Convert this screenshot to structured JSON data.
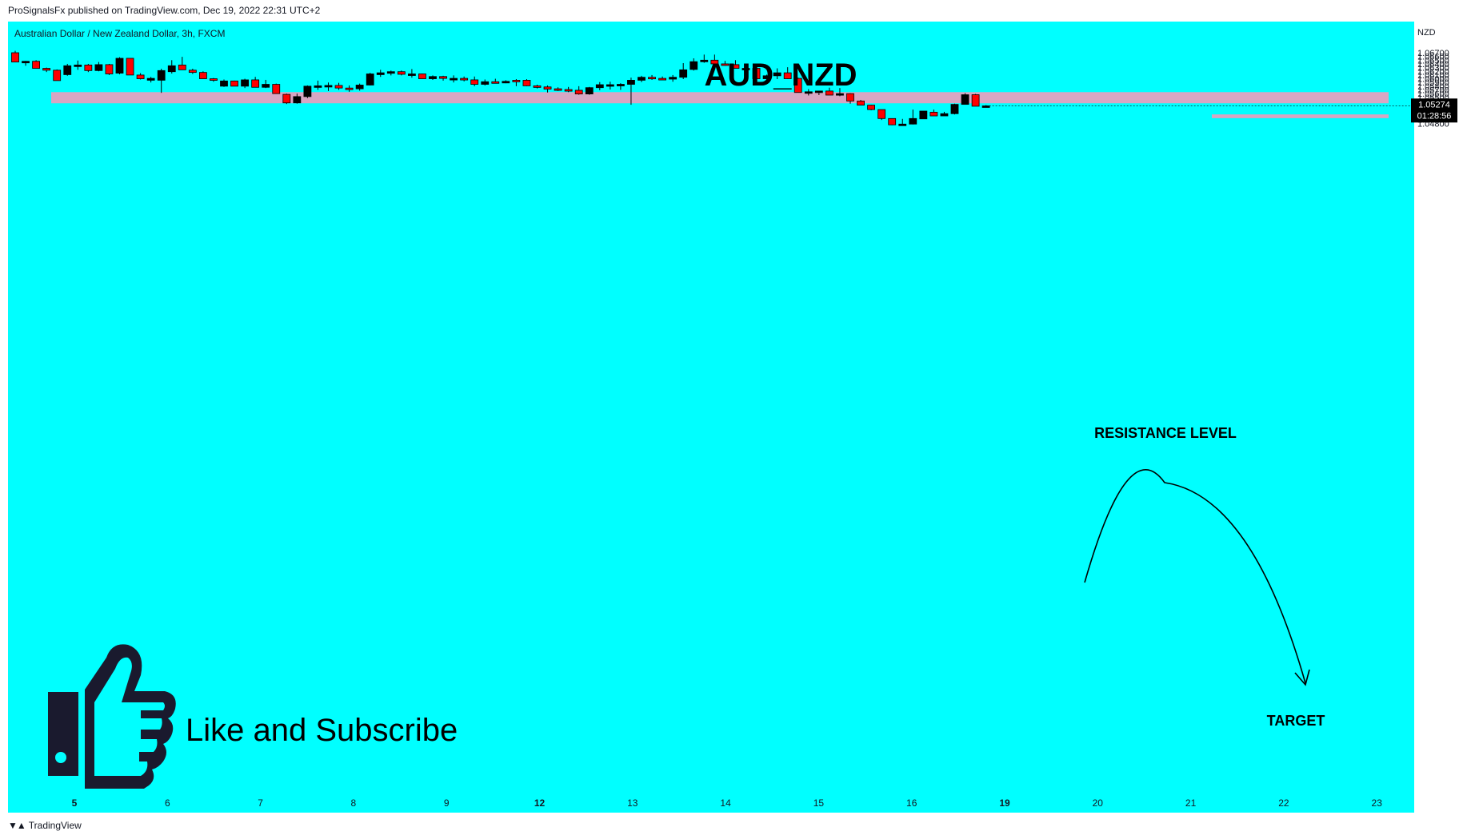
{
  "header": {
    "publisher": "ProSignalsFx published on TradingView.com, Dec 19, 2022 22:31 UTC+2"
  },
  "footer": {
    "brand": "TradingView",
    "logo_icon": "tradingview-logo-icon"
  },
  "colors": {
    "background": "#00FFFF",
    "bull": "#000000",
    "bear": "#FF0000",
    "zone": "#D7A6C3"
  },
  "chart_data": {
    "type": "candlestick",
    "symbol_line": "Australian Dollar / New Zealand Dollar, 3h, FXCM",
    "title": "AUD_NZD",
    "currency": "NZD",
    "ylim": [
      1.0475,
      1.0675
    ],
    "y_ticks": [
      "1.06700",
      "1.06600",
      "1.06500",
      "1.06400",
      "1.06300",
      "1.06200",
      "1.06100",
      "1.06000",
      "1.05900",
      "1.05800",
      "1.05700",
      "1.05600",
      "1.05500",
      "1.05400",
      "1.05300",
      "1.05200",
      "1.05100",
      "1.05000",
      "1.04900",
      "1.04800"
    ],
    "x_ticks": [
      {
        "label": "5",
        "bold": true
      },
      {
        "label": "6",
        "bold": false
      },
      {
        "label": "7",
        "bold": false
      },
      {
        "label": "8",
        "bold": false
      },
      {
        "label": "9",
        "bold": false
      },
      {
        "label": "12",
        "bold": true
      },
      {
        "label": "13",
        "bold": false
      },
      {
        "label": "14",
        "bold": false
      },
      {
        "label": "15",
        "bold": false
      },
      {
        "label": "16",
        "bold": false
      },
      {
        "label": "19",
        "bold": true
      },
      {
        "label": "20",
        "bold": false
      },
      {
        "label": "21",
        "bold": false
      },
      {
        "label": "22",
        "bold": false
      },
      {
        "label": "23",
        "bold": false
      }
    ],
    "last_price": "1.05274",
    "countdown": "01:28:56",
    "candles": [
      [
        1.067,
        1.0675,
        1.0645,
        1.0645
      ],
      [
        1.0645,
        1.0648,
        1.0635,
        1.0647
      ],
      [
        1.0647,
        1.065,
        1.0628,
        1.0628
      ],
      [
        1.0628,
        1.063,
        1.0618,
        1.0623
      ],
      [
        1.0623,
        1.0625,
        1.0595,
        1.0595
      ],
      [
        1.0611,
        1.064,
        1.0608,
        1.0635
      ],
      [
        1.0635,
        1.0649,
        1.0624,
        1.0637
      ],
      [
        1.0637,
        1.064,
        1.0618,
        1.0622
      ],
      [
        1.0622,
        1.0645,
        1.062,
        1.0638
      ],
      [
        1.0638,
        1.064,
        1.061,
        1.0613
      ],
      [
        1.0615,
        1.0658,
        1.0612,
        1.0655
      ],
      [
        1.0655,
        1.0655,
        1.061,
        1.061
      ],
      [
        1.061,
        1.0615,
        1.0598,
        1.06
      ],
      [
        1.0596,
        1.0605,
        1.059,
        1.0601
      ],
      [
        1.0596,
        1.0627,
        1.0562,
        1.0622
      ],
      [
        1.0619,
        1.065,
        1.0614,
        1.0635
      ],
      [
        1.0637,
        1.0659,
        1.0624,
        1.0624
      ],
      [
        1.0623,
        1.0627,
        1.0613,
        1.0617
      ],
      [
        1.0617,
        1.062,
        1.06,
        1.06
      ],
      [
        1.06,
        1.0602,
        1.0592,
        1.0597
      ],
      [
        1.058,
        1.0598,
        1.0578,
        1.0594
      ],
      [
        1.0594,
        1.0595,
        1.058,
        1.058
      ],
      [
        1.058,
        1.06,
        1.0575,
        1.0597
      ],
      [
        1.0597,
        1.0605,
        1.0577,
        1.0577
      ],
      [
        1.0577,
        1.0597,
        1.0575,
        1.0585
      ],
      [
        1.0585,
        1.0587,
        1.056,
        1.056
      ],
      [
        1.0558,
        1.056,
        1.0532,
        1.0535
      ],
      [
        1.0535,
        1.056,
        1.0533,
        1.0552
      ],
      [
        1.0552,
        1.0582,
        1.0548,
        1.058
      ],
      [
        1.058,
        1.0595,
        1.057,
        1.0581
      ],
      [
        1.058,
        1.059,
        1.0567,
        1.0582
      ],
      [
        1.0582,
        1.0589,
        1.057,
        1.0575
      ],
      [
        1.0575,
        1.0582,
        1.0565,
        1.0573
      ],
      [
        1.0573,
        1.0587,
        1.0568,
        1.0583
      ],
      [
        1.0583,
        1.0616,
        1.0582,
        1.0613
      ],
      [
        1.0611,
        1.0624,
        1.0605,
        1.0616
      ],
      [
        1.0617,
        1.0622,
        1.0609,
        1.0619
      ],
      [
        1.0619,
        1.0622,
        1.0609,
        1.0612
      ],
      [
        1.0612,
        1.0626,
        1.0603,
        1.0613
      ],
      [
        1.0613,
        1.0614,
        1.06,
        1.06
      ],
      [
        1.06,
        1.0609,
        1.0597,
        1.0606
      ],
      [
        1.0606,
        1.0608,
        1.0595,
        1.0601
      ],
      [
        1.0601,
        1.0609,
        1.059,
        1.0601
      ],
      [
        1.0601,
        1.0606,
        1.0593,
        1.0597
      ],
      [
        1.0597,
        1.0606,
        1.058,
        1.0585
      ],
      [
        1.0585,
        1.0598,
        1.0582,
        1.0592
      ],
      [
        1.0592,
        1.06,
        1.0588,
        1.059
      ],
      [
        1.059,
        1.0596,
        1.0588,
        1.0593
      ],
      [
        1.0596,
        1.0599,
        1.058,
        1.0593
      ],
      [
        1.0596,
        1.0599,
        1.058,
        1.0581
      ],
      [
        1.0581,
        1.0584,
        1.0574,
        1.0578
      ],
      [
        1.0578,
        1.0582,
        1.0563,
        1.0572
      ],
      [
        1.0573,
        1.0577,
        1.0567,
        1.0571
      ],
      [
        1.0571,
        1.0578,
        1.0564,
        1.0569
      ],
      [
        1.0569,
        1.058,
        1.0557,
        1.0559
      ],
      [
        1.0559,
        1.0578,
        1.0557,
        1.0576
      ],
      [
        1.0576,
        1.0591,
        1.0569,
        1.0584
      ],
      [
        1.0584,
        1.0592,
        1.0571,
        1.0584
      ],
      [
        1.0584,
        1.0588,
        1.057,
        1.0585
      ],
      [
        1.0585,
        1.0603,
        1.053,
        1.0596
      ],
      [
        1.0596,
        1.0608,
        1.0591,
        1.0604
      ],
      [
        1.0604,
        1.061,
        1.0597,
        1.0601
      ],
      [
        1.0601,
        1.0606,
        1.0597,
        1.0599
      ],
      [
        1.0599,
        1.061,
        1.0592,
        1.0604
      ],
      [
        1.0604,
        1.0642,
        1.0599,
        1.0624
      ],
      [
        1.0625,
        1.0655,
        1.0622,
        1.0646
      ],
      [
        1.0646,
        1.0665,
        1.0643,
        1.065
      ],
      [
        1.065,
        1.0665,
        1.0639,
        1.064
      ],
      [
        1.064,
        1.0648,
        1.0635,
        1.0638
      ],
      [
        1.0638,
        1.065,
        1.0628,
        1.0628
      ],
      [
        1.0628,
        1.063,
        1.0621,
        1.0628
      ],
      [
        1.0628,
        1.0632,
        1.06,
        1.06
      ],
      [
        1.06,
        1.0611,
        1.0592,
        1.0608
      ],
      [
        1.0608,
        1.0628,
        1.0599,
        1.0616
      ],
      [
        1.0616,
        1.0631,
        1.0599,
        1.06
      ],
      [
        1.0601,
        1.0603,
        1.0563,
        1.0563
      ],
      [
        1.0563,
        1.0572,
        1.0555,
        1.0565
      ],
      [
        1.0565,
        1.0568,
        1.0556,
        1.0567
      ],
      [
        1.0567,
        1.0576,
        1.0556,
        1.0556
      ],
      [
        1.0558,
        1.0575,
        1.0553,
        1.056
      ],
      [
        1.056,
        1.0561,
        1.0533,
        1.054
      ],
      [
        1.054,
        1.0543,
        1.0529,
        1.0529
      ],
      [
        1.0529,
        1.053,
        1.0515,
        1.0517
      ],
      [
        1.0517,
        1.0517,
        1.0489,
        1.0493
      ],
      [
        1.0493,
        1.0493,
        1.0475,
        1.0476
      ],
      [
        1.0477,
        1.0492,
        1.0474,
        1.0478
      ],
      [
        1.0478,
        1.0517,
        1.0477,
        1.0493
      ],
      [
        1.0492,
        1.0513,
        1.0492,
        1.0513
      ],
      [
        1.051,
        1.0517,
        1.0502,
        1.05
      ],
      [
        1.05,
        1.0511,
        1.0501,
        1.0506
      ],
      [
        1.0506,
        1.0533,
        1.0504,
        1.0531
      ],
      [
        1.0531,
        1.0561,
        1.0531,
        1.0557
      ],
      [
        1.0557,
        1.0559,
        1.0526,
        1.0526
      ],
      [
        1.0526,
        1.0529,
        1.0524,
        1.0527
      ]
    ],
    "resistance": {
      "label": "RESISTANCE LEVEL",
      "top": 1.0564,
      "bottom": 1.0534
    },
    "target": {
      "label": "TARGET",
      "top": 1.0504,
      "bottom": 1.0494
    },
    "cta": {
      "text": "Like and Subscribe",
      "icon": "thumbs-up-icon"
    }
  }
}
